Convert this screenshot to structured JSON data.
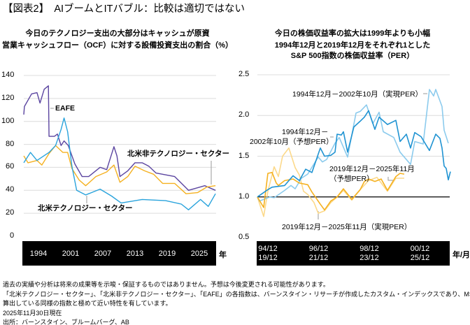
{
  "title": "【図表2】　AIブームとITバブル：比較は適切ではない",
  "chart_data": [
    {
      "type": "line",
      "title": "今日のテクノロジー支出の大部分はキャッシュが原資",
      "subtitle": "営業キャッシュフロー（OCF）に対する設備投資支出の割合（%）",
      "xlabel": "年",
      "ylabel": "",
      "ylim": [
        0,
        140
      ],
      "xlim": [
        1994,
        2026
      ],
      "grid": true,
      "y_ticks": [
        "0",
        "20",
        "40",
        "60",
        "80",
        "100",
        "120",
        "140"
      ],
      "x_ticks": [
        "1994",
        "2001",
        "2007",
        "2013",
        "2019",
        "2025"
      ],
      "series": [
        {
          "name": "EAFE",
          "color": "#5b45a0",
          "points": [
            [
              1994,
              106
            ],
            [
              1994.1,
              113
            ],
            [
              1995.3,
              124
            ],
            [
              1996.2,
              125
            ],
            [
              1996.7,
              116
            ],
            [
              1997.4,
              128
            ],
            [
              1998.1,
              131
            ],
            [
              1998.2,
              87
            ],
            [
              1999.1,
              87
            ],
            [
              1999.6,
              89
            ],
            [
              2000.2,
              79
            ],
            [
              2000.7,
              83
            ],
            [
              2001.4,
              79
            ],
            [
              2002.5,
              63
            ],
            [
              2003.7,
              52
            ],
            [
              2004.8,
              52
            ],
            [
              2006.7,
              60
            ],
            [
              2007.8,
              58
            ],
            [
              2009,
              78
            ],
            [
              2009.5,
              70
            ],
            [
              2010,
              52
            ],
            [
              2011.3,
              57
            ],
            [
              2012.5,
              64
            ],
            [
              2013.7,
              64
            ],
            [
              2014.8,
              61
            ],
            [
              2016,
              55
            ],
            [
              2019.1,
              52
            ],
            [
              2021.4,
              40
            ],
            [
              2023.4,
              43
            ],
            [
              2024.1,
              44
            ],
            [
              2025.9,
              40
            ]
          ]
        },
        {
          "name": "北米非テクノロジー・セクター",
          "color": "#f5b120",
          "points": [
            [
              1994,
              70
            ],
            [
              1994.7,
              64
            ],
            [
              1996.2,
              66
            ],
            [
              1997,
              62
            ],
            [
              1998.2,
              72
            ],
            [
              1999.3,
              79
            ],
            [
              2000.5,
              73
            ],
            [
              2001.3,
              73
            ],
            [
              2002,
              59
            ],
            [
              2003.2,
              49
            ],
            [
              2004.3,
              44
            ],
            [
              2006,
              52
            ],
            [
              2007.8,
              56
            ],
            [
              2009,
              62
            ],
            [
              2010,
              47
            ],
            [
              2011.3,
              52
            ],
            [
              2012.5,
              61
            ],
            [
              2014.1,
              57
            ],
            [
              2015.6,
              54
            ],
            [
              2017.1,
              46
            ],
            [
              2019.1,
              46
            ],
            [
              2021,
              37
            ],
            [
              2022.9,
              38
            ],
            [
              2024.5,
              43
            ],
            [
              2025.9,
              44
            ]
          ]
        },
        {
          "name": "北米テクノロジー・セクター",
          "color": "#29a3dc",
          "points": [
            [
              1994,
              64
            ],
            [
              1995.1,
              73
            ],
            [
              1996.2,
              66
            ],
            [
              1998.2,
              73
            ],
            [
              1999.3,
              79
            ],
            [
              2000.2,
              93
            ],
            [
              2000.7,
              103
            ],
            [
              2001.3,
              91
            ],
            [
              2002,
              61
            ],
            [
              2002.8,
              40
            ],
            [
              2004.3,
              36
            ],
            [
              2006.7,
              41
            ],
            [
              2008.6,
              35
            ],
            [
              2010.2,
              29
            ],
            [
              2013.7,
              32
            ],
            [
              2017.6,
              31
            ],
            [
              2020.2,
              28
            ],
            [
              2021.4,
              23
            ],
            [
              2023.4,
              32
            ],
            [
              2024.7,
              26
            ],
            [
              2025.9,
              37
            ]
          ]
        }
      ],
      "annotations": [
        "EAFE",
        "北米非テクノロジー・セクター",
        "北米テクノロジー・セクター"
      ]
    },
    {
      "type": "line",
      "title": "今日の株価収益率の拡大は1999年よりも小幅",
      "subtitle": [
        "1994年12月と2019年12月をそれぞれ1とした",
        "S&P 500指数の株価収益率（PER）"
      ],
      "xlabel": "年/月",
      "ylim": [
        0.5,
        2.5
      ],
      "grid": true,
      "y_ticks": [
        "0.5",
        "1.0",
        "1.5",
        "2.0",
        "2.5"
      ],
      "x_ticks": [
        [
          "94/12",
          "19/12"
        ],
        [
          "96/12",
          "21/12"
        ],
        [
          "98/12",
          "23/12"
        ],
        [
          "00/12",
          "25/12"
        ]
      ],
      "x_unit": "months since start",
      "series": [
        {
          "name": "1994年12月－2002年10月（予想PER）",
          "color": "#1f93d2",
          "points": [
            [
              0,
              1.0
            ],
            [
              5,
              1.09
            ],
            [
              7,
              1.12
            ],
            [
              13,
              1.14
            ],
            [
              17,
              1.26
            ],
            [
              20,
              1.2
            ],
            [
              23,
              1.34
            ],
            [
              26,
              1.3
            ],
            [
              30,
              1.6
            ],
            [
              32,
              1.5
            ],
            [
              35,
              1.51
            ],
            [
              37,
              1.55
            ],
            [
              38,
              1.77
            ],
            [
              40,
              1.76
            ],
            [
              41,
              1.8
            ],
            [
              43,
              1.55
            ],
            [
              46,
              1.86
            ],
            [
              49,
              1.93
            ],
            [
              51,
              1.98
            ],
            [
              53,
              2.06
            ],
            [
              56,
              1.83
            ],
            [
              58,
              1.98
            ],
            [
              62,
              1.89
            ],
            [
              66,
              1.94
            ],
            [
              68,
              1.68
            ],
            [
              71,
              1.77
            ],
            [
              73,
              1.6
            ],
            [
              75,
              1.79
            ],
            [
              78,
              1.74
            ],
            [
              82,
              1.57
            ],
            [
              85,
              1.77
            ],
            [
              87,
              1.72
            ],
            [
              88,
              1.6
            ],
            [
              89,
              1.38
            ],
            [
              90,
              1.35
            ],
            [
              91,
              1.21
            ],
            [
              92,
              1.31
            ]
          ]
        },
        {
          "name": "1994年12月－2002年10月（実現PER）",
          "color": "#8ccbed",
          "points": [
            [
              0,
              1.0
            ],
            [
              1,
              0.95
            ],
            [
              6,
              1.0
            ],
            [
              8,
              0.99
            ],
            [
              13,
              1.08
            ],
            [
              16,
              1.14
            ],
            [
              18,
              1.1
            ],
            [
              21,
              1.23
            ],
            [
              24,
              1.28
            ],
            [
              29,
              1.49
            ],
            [
              31,
              1.43
            ],
            [
              33,
              1.46
            ],
            [
              37,
              1.66
            ],
            [
              39,
              1.73
            ],
            [
              43,
              1.49
            ],
            [
              47,
              2.03
            ],
            [
              49,
              2.05
            ],
            [
              52,
              2.13
            ],
            [
              55,
              1.9
            ],
            [
              58,
              2.04
            ],
            [
              60,
              1.8
            ],
            [
              65,
              1.73
            ],
            [
              68,
              1.55
            ],
            [
              73,
              1.4
            ],
            [
              75,
              1.68
            ],
            [
              79,
              1.65
            ],
            [
              82,
              2.32
            ],
            [
              84,
              2.24
            ],
            [
              85,
              2.32
            ],
            [
              88,
              2.11
            ],
            [
              89,
              1.82
            ],
            [
              91,
              1.66
            ]
          ]
        },
        {
          "name": "2019年12月－2025年11月（予想PER）",
          "color": "#f5b120",
          "points": [
            [
              0,
              1.0
            ],
            [
              3,
              0.87
            ],
            [
              5,
              1.29
            ],
            [
              7,
              1.3
            ],
            [
              9,
              1.17
            ],
            [
              10,
              1.14
            ],
            [
              13,
              1.2
            ],
            [
              17,
              1.22
            ],
            [
              20,
              1.17
            ],
            [
              24,
              1.15
            ],
            [
              26,
              1.06
            ],
            [
              30,
              0.91
            ],
            [
              32,
              0.84
            ],
            [
              35,
              0.95
            ],
            [
              38,
              1.0
            ],
            [
              41,
              1.1
            ],
            [
              45,
              0.97
            ],
            [
              49,
              1.09
            ],
            [
              51,
              1.19
            ],
            [
              53,
              1.22
            ],
            [
              56,
              1.19
            ],
            [
              59,
              1.22
            ],
            [
              62,
              1.08
            ],
            [
              66,
              1.25
            ],
            [
              68,
              1.29
            ],
            [
              70,
              1.28
            ]
          ]
        },
        {
          "name": "2019年12月－2025年11月（実現PER）",
          "color": "#fcd98a",
          "points": [
            [
              0,
              1.0
            ],
            [
              3,
              0.76
            ],
            [
              5,
              1.07
            ],
            [
              8,
              1.37
            ],
            [
              10,
              1.25
            ],
            [
              12,
              1.5
            ],
            [
              15,
              1.6
            ],
            [
              18,
              1.36
            ],
            [
              20,
              1.27
            ],
            [
              22,
              1.07
            ],
            [
              24,
              1.03
            ],
            [
              27,
              0.93
            ],
            [
              29,
              0.8
            ],
            [
              32,
              0.83
            ],
            [
              35,
              0.93
            ],
            [
              38,
              1.0
            ],
            [
              41,
              1.08
            ],
            [
              45,
              0.96
            ],
            [
              49,
              1.09
            ],
            [
              53,
              1.2
            ],
            [
              57,
              1.24
            ],
            [
              62,
              1.07
            ],
            [
              66,
              1.23
            ],
            [
              70,
              1.23
            ]
          ]
        }
      ],
      "annotations": {
        "real_9402": "1994年12月－2002年10月（実現PER）",
        "fwd_9402_l1": "1994年12月－",
        "fwd_9402_l2": "2002年10月（予想PER）",
        "fwd_1925_l1": "2019年12月－2025年11月",
        "fwd_1925_l2": "（予想PER）",
        "real_1925": "2019年12月－2025年11月（実現PER）"
      }
    }
  ],
  "notes": [
    "過去の実績や分析は将来の成果等を示唆・保証するものではありません。予想は今後変更される可能性があります。",
    "「北米テクノロジー・セクター」、「北米非テクノロジー・セクター」、「EAFE」の各指数は、バーンスタイン・リサーチが作成したカスタム・インデックスであり、MSCIが",
    "算出している同様の指数と極めて近い特性を有しています。",
    "2025年11月30日現在",
    "出所：バーンスタイン、ブルームバーグ、AB"
  ]
}
